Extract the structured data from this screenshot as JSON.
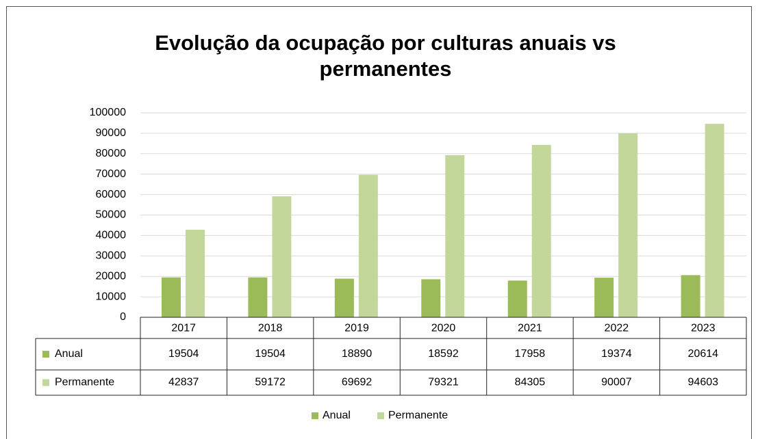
{
  "chart_data": {
    "type": "bar",
    "title": "Evolução da ocupação por culturas anuais vs permanentes",
    "categories": [
      "2017",
      "2018",
      "2019",
      "2020",
      "2021",
      "2022",
      "2023"
    ],
    "series": [
      {
        "name": "Anual",
        "color": "#9bbb59",
        "values": [
          19504,
          19504,
          18890,
          18592,
          17958,
          19374,
          20614
        ]
      },
      {
        "name": "Permanente",
        "color": "#c4d79b",
        "values": [
          42837,
          59172,
          69692,
          79321,
          84305,
          90007,
          94603
        ]
      }
    ],
    "ylim": [
      0,
      100000
    ],
    "yticks": [
      0,
      10000,
      20000,
      30000,
      40000,
      50000,
      60000,
      70000,
      80000,
      90000,
      100000
    ],
    "grid": true,
    "legend": "bottom",
    "data_table": true
  }
}
